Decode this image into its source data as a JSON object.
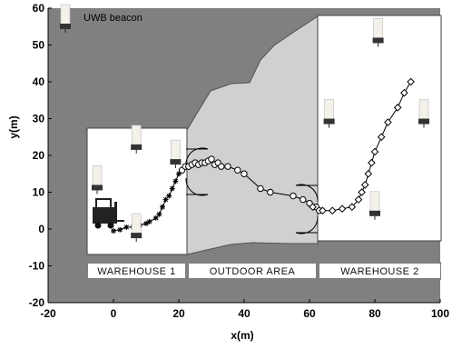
{
  "chart_data": {
    "type": "scatter",
    "xlabel": "x(m)",
    "ylabel": "y(m)",
    "xlim": [
      -20,
      100
    ],
    "ylim": [
      -20,
      60
    ],
    "xticks": [
      "-20",
      "0",
      "20",
      "40",
      "60",
      "80",
      "100"
    ],
    "yticks": [
      "-20",
      "-10",
      "0",
      "10",
      "20",
      "30",
      "40",
      "50",
      "60"
    ],
    "grid": false,
    "legend": {
      "position": "top-left",
      "label": "UWB beacon"
    },
    "zones": [
      {
        "label": "WAREHOUSE 1",
        "x": [
          -8,
          22
        ],
        "y": [
          -5,
          28
        ]
      },
      {
        "label": "OUTDOOR AREA",
        "x": [
          22,
          62
        ],
        "y": [
          -5,
          30
        ]
      },
      {
        "label": "WAREHOUSE 2",
        "x": [
          62,
          98
        ],
        "y": [
          -2,
          58
        ]
      }
    ],
    "beacons": [
      {
        "x": 7,
        "y": 22
      },
      {
        "x": 19,
        "y": 18
      },
      {
        "x": -5,
        "y": 11
      },
      {
        "x": 7,
        "y": -2
      },
      {
        "x": 81,
        "y": 51
      },
      {
        "x": 66,
        "y": 29
      },
      {
        "x": 95,
        "y": 29
      },
      {
        "x": 80,
        "y": 4
      }
    ],
    "series": [
      {
        "marker": "star",
        "x": [
          0,
          2,
          4,
          6,
          8,
          10,
          11,
          13,
          14,
          15,
          16,
          17,
          18,
          19,
          20,
          21
        ],
        "y": [
          -0.5,
          -0.2,
          0.5,
          0.6,
          1,
          1.5,
          2,
          3,
          4,
          6,
          8,
          9,
          11,
          13,
          15,
          16
        ]
      },
      {
        "marker": "circle",
        "x": [
          21,
          22,
          23,
          24,
          25,
          26,
          27,
          28,
          29,
          30,
          31,
          32,
          33,
          35,
          38,
          40,
          45,
          48,
          55,
          58,
          60,
          62,
          63
        ],
        "y": [
          16,
          17,
          17,
          17.5,
          18,
          17.5,
          18,
          18,
          18.5,
          19,
          17.5,
          18,
          17,
          17,
          16,
          15,
          11,
          10,
          9,
          8,
          7,
          6,
          5
        ]
      },
      {
        "marker": "diamond",
        "x": [
          61,
          64,
          67,
          70,
          73,
          75,
          76,
          77,
          78,
          79,
          80,
          82,
          84,
          87,
          89,
          91
        ],
        "y": [
          6,
          5,
          5,
          5.5,
          6,
          8,
          10,
          12,
          15,
          18,
          21,
          25,
          29,
          33,
          37,
          40
        ]
      }
    ]
  }
}
